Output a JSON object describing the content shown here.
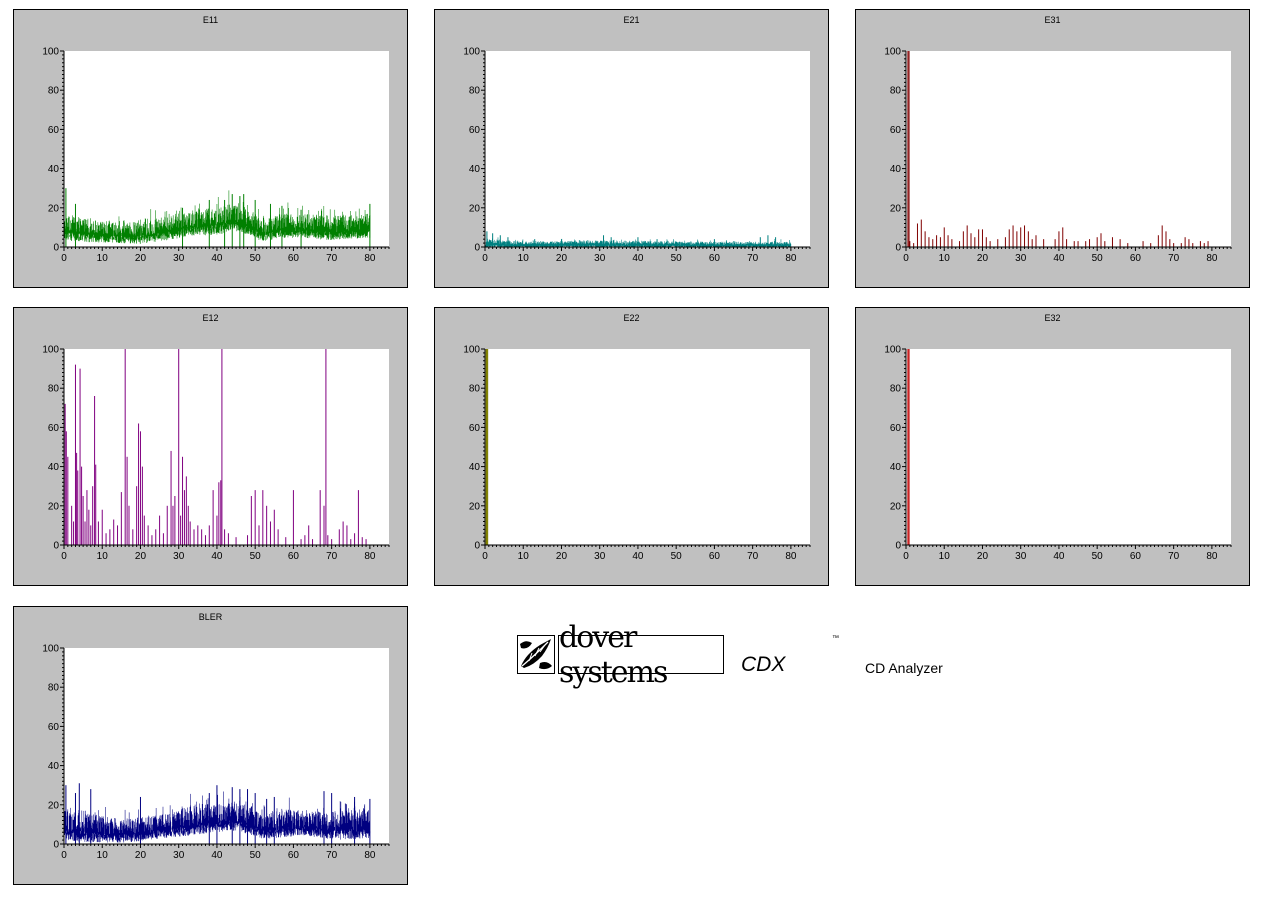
{
  "charts": [
    {
      "title": "E11",
      "chart_data": {
        "type": "bar",
        "title": "E11",
        "color": "#008000",
        "xlim": [
          0,
          85
        ],
        "ylim": [
          0,
          100
        ],
        "xticks": [
          "0",
          "10",
          "20",
          "30",
          "40",
          "50",
          "60",
          "70",
          "80"
        ],
        "yticks": [
          "0",
          "20",
          "40",
          "60",
          "80",
          "100"
        ],
        "pattern": "dense noise",
        "profile": [
          [
            0,
            11,
            5
          ],
          [
            5,
            10,
            5
          ],
          [
            15,
            8,
            4
          ],
          [
            20,
            9,
            5
          ],
          [
            28,
            11,
            5
          ],
          [
            32,
            13,
            5
          ],
          [
            40,
            15,
            6
          ],
          [
            44,
            17,
            6
          ],
          [
            48,
            14,
            5
          ],
          [
            52,
            10,
            5
          ],
          [
            56,
            12,
            5
          ],
          [
            62,
            12,
            5
          ],
          [
            70,
            11,
            5
          ],
          [
            80,
            12,
            5
          ]
        ],
        "spikes": [
          [
            0.5,
            30
          ],
          [
            3,
            22
          ],
          [
            31,
            20
          ],
          [
            38,
            24
          ],
          [
            42,
            24
          ],
          [
            44,
            27
          ],
          [
            46,
            26
          ],
          [
            47,
            27
          ],
          [
            50,
            24
          ],
          [
            54,
            22
          ],
          [
            57,
            21
          ],
          [
            62,
            19
          ],
          [
            80,
            22
          ]
        ]
      }
    },
    {
      "title": "E21",
      "chart_data": {
        "type": "bar",
        "title": "E21",
        "color": "#008080",
        "xlim": [
          0,
          85
        ],
        "ylim": [
          0,
          100
        ],
        "xticks": [
          "0",
          "10",
          "20",
          "30",
          "40",
          "50",
          "60",
          "70",
          "80"
        ],
        "yticks": [
          "0",
          "20",
          "40",
          "60",
          "80",
          "100"
        ],
        "pattern": "dense noise",
        "profile": [
          [
            0,
            2.5,
            2
          ],
          [
            10,
            1.5,
            1.2
          ],
          [
            30,
            2,
            1.5
          ],
          [
            60,
            1.5,
            1.2
          ],
          [
            80,
            1.5,
            1.2
          ]
        ],
        "spikes": [
          [
            0.5,
            8
          ],
          [
            2,
            7
          ],
          [
            4,
            6
          ],
          [
            6,
            5
          ],
          [
            13,
            4
          ],
          [
            20,
            4
          ],
          [
            31,
            6
          ],
          [
            33,
            5
          ],
          [
            40,
            5
          ],
          [
            45,
            4
          ],
          [
            60,
            4
          ],
          [
            72,
            5
          ],
          [
            74,
            6
          ],
          [
            76,
            5
          ]
        ]
      }
    },
    {
      "title": "E31",
      "chart_data": {
        "type": "bar",
        "title": "E31",
        "color": "#800000",
        "xlim": [
          0,
          85
        ],
        "ylim": [
          0,
          100
        ],
        "xticks": [
          "0",
          "10",
          "20",
          "30",
          "40",
          "50",
          "60",
          "70",
          "80"
        ],
        "yticks": [
          "0",
          "20",
          "40",
          "60",
          "80",
          "100"
        ],
        "pattern": "sparse spikes",
        "spikes": [
          [
            0.5,
            100
          ],
          [
            0.8,
            100
          ],
          [
            1,
            3
          ],
          [
            2,
            2
          ],
          [
            3,
            12
          ],
          [
            4,
            14
          ],
          [
            5,
            8
          ],
          [
            6,
            5
          ],
          [
            7,
            4
          ],
          [
            8,
            6
          ],
          [
            9,
            5
          ],
          [
            10,
            10
          ],
          [
            11,
            6
          ],
          [
            12,
            4
          ],
          [
            14,
            3
          ],
          [
            15,
            8
          ],
          [
            16,
            11
          ],
          [
            17,
            7
          ],
          [
            18,
            5
          ],
          [
            19,
            9
          ],
          [
            20,
            9
          ],
          [
            21,
            5
          ],
          [
            22,
            3
          ],
          [
            24,
            4
          ],
          [
            26,
            5
          ],
          [
            27,
            9
          ],
          [
            28,
            11
          ],
          [
            29,
            8
          ],
          [
            30,
            10
          ],
          [
            31,
            11
          ],
          [
            32,
            8
          ],
          [
            33,
            4
          ],
          [
            34,
            6
          ],
          [
            36,
            4
          ],
          [
            39,
            4
          ],
          [
            40,
            8
          ],
          [
            41,
            10
          ],
          [
            42,
            4
          ],
          [
            44,
            3
          ],
          [
            45,
            3
          ],
          [
            47,
            3
          ],
          [
            48,
            4
          ],
          [
            50,
            5
          ],
          [
            51,
            7
          ],
          [
            52,
            3
          ],
          [
            54,
            5
          ],
          [
            56,
            4
          ],
          [
            58,
            2
          ],
          [
            62,
            3
          ],
          [
            64,
            2
          ],
          [
            66,
            6
          ],
          [
            67,
            11
          ],
          [
            68,
            8
          ],
          [
            69,
            4
          ],
          [
            70,
            2
          ],
          [
            72,
            2
          ],
          [
            73,
            5
          ],
          [
            74,
            4
          ],
          [
            75,
            2
          ],
          [
            77,
            3
          ],
          [
            78,
            2
          ],
          [
            79,
            3
          ]
        ]
      }
    },
    {
      "title": "E12",
      "chart_data": {
        "type": "bar",
        "title": "E12",
        "color": "#800080",
        "xlim": [
          0,
          85
        ],
        "ylim": [
          0,
          100
        ],
        "xticks": [
          "0",
          "10",
          "20",
          "30",
          "40",
          "50",
          "60",
          "70",
          "80"
        ],
        "yticks": [
          "0",
          "20",
          "40",
          "60",
          "80",
          "100"
        ],
        "pattern": "sparse spikes",
        "spikes": [
          [
            0.3,
            72
          ],
          [
            0.6,
            58
          ],
          [
            1,
            45
          ],
          [
            2,
            20
          ],
          [
            2.5,
            12
          ],
          [
            3,
            92
          ],
          [
            3.3,
            47
          ],
          [
            3.6,
            38
          ],
          [
            4.2,
            90
          ],
          [
            4.6,
            40
          ],
          [
            5,
            25
          ],
          [
            5.5,
            12
          ],
          [
            6,
            28
          ],
          [
            6.5,
            18
          ],
          [
            7,
            10
          ],
          [
            7.5,
            30
          ],
          [
            8,
            76
          ],
          [
            8.3,
            41
          ],
          [
            9,
            12
          ],
          [
            10,
            18
          ],
          [
            11,
            6
          ],
          [
            12,
            8
          ],
          [
            13,
            13
          ],
          [
            14,
            10
          ],
          [
            15,
            27
          ],
          [
            16,
            100
          ],
          [
            16.5,
            45
          ],
          [
            17,
            20
          ],
          [
            18,
            8
          ],
          [
            19,
            30
          ],
          [
            19.5,
            62
          ],
          [
            20,
            58
          ],
          [
            20.5,
            40
          ],
          [
            21,
            15
          ],
          [
            22,
            10
          ],
          [
            23,
            5
          ],
          [
            24,
            8
          ],
          [
            25,
            15
          ],
          [
            26,
            6
          ],
          [
            27,
            20
          ],
          [
            28,
            48
          ],
          [
            28.5,
            20
          ],
          [
            29,
            25
          ],
          [
            30,
            100
          ],
          [
            30.5,
            15
          ],
          [
            31,
            45
          ],
          [
            31.5,
            28
          ],
          [
            32,
            35
          ],
          [
            32.5,
            20
          ],
          [
            33,
            12
          ],
          [
            34,
            8
          ],
          [
            35,
            10
          ],
          [
            36,
            8
          ],
          [
            37,
            5
          ],
          [
            38,
            10
          ],
          [
            39,
            28
          ],
          [
            40,
            15
          ],
          [
            40.5,
            32
          ],
          [
            41,
            33
          ],
          [
            41.3,
            100
          ],
          [
            42,
            8
          ],
          [
            43,
            6
          ],
          [
            45,
            4
          ],
          [
            48,
            5
          ],
          [
            49,
            25
          ],
          [
            50,
            28
          ],
          [
            51,
            10
          ],
          [
            52,
            28
          ],
          [
            53,
            20
          ],
          [
            54,
            12
          ],
          [
            55,
            18
          ],
          [
            56,
            8
          ],
          [
            58,
            4
          ],
          [
            60,
            28
          ],
          [
            62,
            3
          ],
          [
            63,
            5
          ],
          [
            64,
            10
          ],
          [
            65,
            3
          ],
          [
            67,
            28
          ],
          [
            68,
            20
          ],
          [
            68.5,
            100
          ],
          [
            69,
            5
          ],
          [
            70,
            3
          ],
          [
            72,
            8
          ],
          [
            73,
            12
          ],
          [
            74,
            10
          ],
          [
            75,
            3
          ],
          [
            76,
            6
          ],
          [
            77,
            28
          ],
          [
            78,
            4
          ],
          [
            79,
            3
          ]
        ]
      }
    },
    {
      "title": "E22",
      "chart_data": {
        "type": "bar",
        "title": "E22",
        "color": "#808000",
        "xlim": [
          0,
          85
        ],
        "ylim": [
          0,
          100
        ],
        "xticks": [
          "0",
          "10",
          "20",
          "30",
          "40",
          "50",
          "60",
          "70",
          "80"
        ],
        "yticks": [
          "0",
          "20",
          "40",
          "60",
          "80",
          "100"
        ],
        "pattern": "sparse spikes",
        "spikes": [
          [
            0.3,
            100
          ],
          [
            0.5,
            100
          ],
          [
            0.7,
            100
          ]
        ]
      }
    },
    {
      "title": "E32",
      "chart_data": {
        "type": "bar",
        "title": "E32",
        "color": "#c00000",
        "xlim": [
          0,
          85
        ],
        "ylim": [
          0,
          100
        ],
        "xticks": [
          "0",
          "10",
          "20",
          "30",
          "40",
          "50",
          "60",
          "70",
          "80"
        ],
        "yticks": [
          "0",
          "20",
          "40",
          "60",
          "80",
          "100"
        ],
        "pattern": "sparse spikes",
        "spikes": [
          [
            0.5,
            100
          ],
          [
            0.8,
            100
          ]
        ]
      }
    },
    {
      "title": "BLER",
      "chart_data": {
        "type": "bar",
        "title": "BLER",
        "color": "#000080",
        "xlim": [
          0,
          85
        ],
        "ylim": [
          0,
          100
        ],
        "xticks": [
          "0",
          "10",
          "20",
          "30",
          "40",
          "50",
          "60",
          "70",
          "80"
        ],
        "yticks": [
          "0",
          "20",
          "40",
          "60",
          "80",
          "100"
        ],
        "pattern": "dense noise",
        "profile": [
          [
            0,
            11,
            6
          ],
          [
            5,
            10,
            6
          ],
          [
            15,
            8,
            5
          ],
          [
            20,
            9,
            5
          ],
          [
            28,
            11,
            5
          ],
          [
            32,
            13,
            6
          ],
          [
            40,
            15,
            6
          ],
          [
            44,
            16,
            6
          ],
          [
            48,
            14,
            6
          ],
          [
            52,
            10,
            5
          ],
          [
            56,
            12,
            6
          ],
          [
            62,
            12,
            5
          ],
          [
            70,
            11,
            6
          ],
          [
            80,
            12,
            6
          ]
        ],
        "spikes": [
          [
            0.5,
            30
          ],
          [
            3,
            26
          ],
          [
            4,
            31
          ],
          [
            7,
            28
          ],
          [
            20,
            24
          ],
          [
            38,
            26
          ],
          [
            40,
            30
          ],
          [
            44,
            29
          ],
          [
            46,
            28
          ],
          [
            48,
            28
          ],
          [
            50,
            26
          ],
          [
            53,
            23
          ],
          [
            55,
            24
          ],
          [
            68,
            27
          ],
          [
            70,
            26
          ],
          [
            76,
            24
          ],
          [
            80,
            23
          ]
        ]
      }
    }
  ],
  "logo": {
    "brand": "dover systems",
    "product": "CDX",
    "tm": "™",
    "subtitle": "CD Analyzer"
  }
}
